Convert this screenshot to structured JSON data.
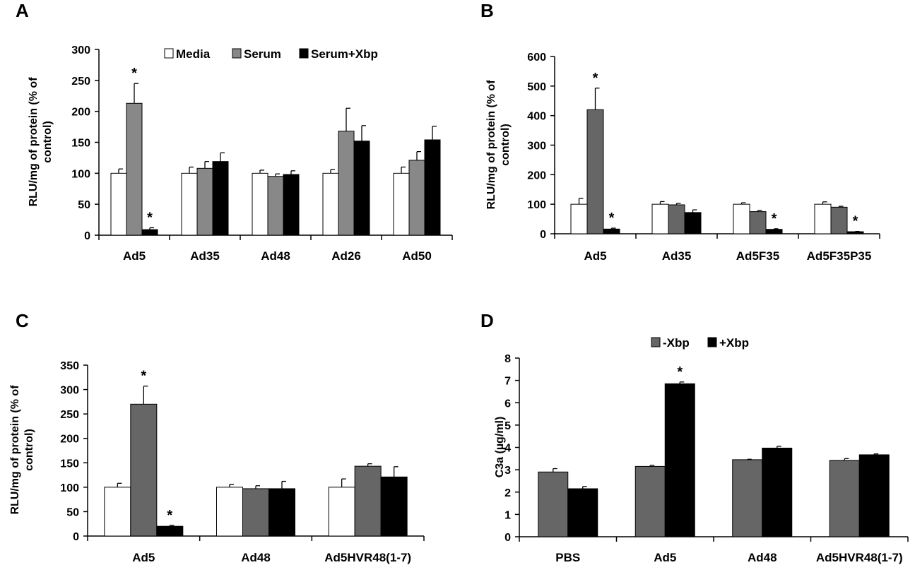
{
  "panels": [
    "A",
    "B",
    "C",
    "D"
  ],
  "chart_data": [
    {
      "panel": "A",
      "type": "bar",
      "ylabel_lines": [
        "RLU/mg of protein (% of",
        "control)"
      ],
      "ylim": [
        0,
        300
      ],
      "yticks": [
        0,
        50,
        100,
        150,
        200,
        250,
        300
      ],
      "categories": [
        "Ad5",
        "Ad35",
        "Ad48",
        "Ad26",
        "Ad50"
      ],
      "legend_position": "top",
      "series": [
        {
          "name": "Media",
          "color": "#ffffff",
          "values": [
            100,
            100,
            100,
            100,
            100
          ],
          "errors": [
            7,
            10,
            5,
            6,
            10
          ]
        },
        {
          "name": "Serum",
          "color": "#888888",
          "values": [
            213,
            108,
            95,
            168,
            121
          ],
          "errors": [
            32,
            11,
            4,
            37,
            14
          ]
        },
        {
          "name": "Serum+Xbp",
          "color": "#000000",
          "values": [
            9,
            119,
            98,
            152,
            154
          ],
          "errors": [
            3,
            14,
            6,
            25,
            22
          ]
        }
      ],
      "significance": [
        {
          "category": 0,
          "series": 1,
          "label": "*"
        },
        {
          "category": 0,
          "series": 2,
          "label": "*"
        }
      ]
    },
    {
      "panel": "B",
      "type": "bar",
      "ylabel_lines": [
        "RLU/mg of protein (% of",
        "control)"
      ],
      "ylim": [
        0,
        600
      ],
      "yticks": [
        0,
        100,
        200,
        300,
        400,
        500,
        600
      ],
      "categories": [
        "Ad5",
        "Ad35",
        "Ad5F35",
        "Ad5F35P35"
      ],
      "series": [
        {
          "color": "#ffffff",
          "values": [
            100,
            100,
            100,
            100
          ],
          "errors": [
            20,
            9,
            5,
            8
          ]
        },
        {
          "color": "#666666",
          "values": [
            420,
            98,
            75,
            90
          ],
          "errors": [
            73,
            5,
            4,
            3
          ]
        },
        {
          "color": "#000000",
          "values": [
            16,
            72,
            15,
            7
          ],
          "errors": [
            3,
            9,
            2,
            1
          ]
        }
      ],
      "significance": [
        {
          "category": 0,
          "series": 1,
          "label": "*"
        },
        {
          "category": 0,
          "series": 2,
          "label": "*"
        },
        {
          "category": 2,
          "series": 2,
          "label": "*"
        },
        {
          "category": 3,
          "series": 2,
          "label": "*"
        }
      ]
    },
    {
      "panel": "C",
      "type": "bar",
      "ylabel_lines": [
        "RLU/mg of protein (% of",
        "control)"
      ],
      "ylim": [
        0,
        350
      ],
      "yticks": [
        0,
        50,
        100,
        150,
        200,
        250,
        300,
        350
      ],
      "categories": [
        "Ad5",
        "Ad48",
        "Ad5HVR48(1-7)"
      ],
      "series": [
        {
          "color": "#ffffff",
          "values": [
            100,
            100,
            100
          ],
          "errors": [
            8,
            6,
            17
          ]
        },
        {
          "color": "#666666",
          "values": [
            270,
            97,
            143
          ],
          "errors": [
            37,
            6,
            5
          ]
        },
        {
          "color": "#000000",
          "values": [
            20,
            97,
            121
          ],
          "errors": [
            2,
            15,
            21
          ]
        }
      ],
      "significance": [
        {
          "category": 0,
          "series": 1,
          "label": "*"
        },
        {
          "category": 0,
          "series": 2,
          "label": "*"
        }
      ]
    },
    {
      "panel": "D",
      "type": "bar",
      "ylabel": "C3a (µg/ml)",
      "ylim": [
        0,
        8
      ],
      "yticks": [
        0,
        1,
        2,
        3,
        4,
        5,
        6,
        7,
        8
      ],
      "categories": [
        "PBS",
        "Ad5",
        "Ad48",
        "Ad5HVR48(1-7)"
      ],
      "legend_position": "top",
      "series": [
        {
          "name": "-Xbp",
          "color": "#666666",
          "values": [
            2.9,
            3.15,
            3.45,
            3.42
          ],
          "errors": [
            0.15,
            0.05,
            0.02,
            0.08
          ]
        },
        {
          "name": "+Xbp",
          "color": "#000000",
          "values": [
            2.15,
            6.85,
            3.97,
            3.67
          ],
          "errors": [
            0.1,
            0.08,
            0.08,
            0.04
          ]
        }
      ],
      "significance": [
        {
          "category": 1,
          "series": 1,
          "label": "*"
        }
      ]
    }
  ]
}
